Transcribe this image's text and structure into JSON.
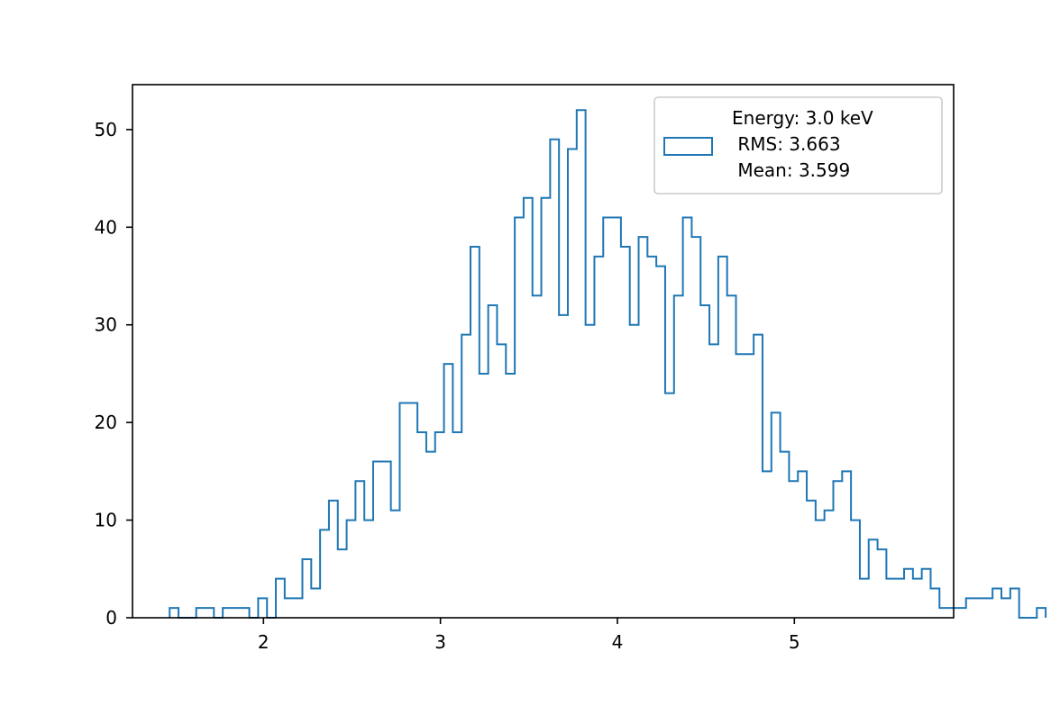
{
  "chart_data": {
    "type": "histogram",
    "histtype": "step",
    "bin_start": 1.47,
    "bin_width": 0.05,
    "counts": [
      1,
      0,
      0,
      1,
      1,
      0,
      1,
      1,
      1,
      0,
      2,
      0,
      4,
      2,
      2,
      6,
      3,
      9,
      12,
      7,
      10,
      14,
      10,
      16,
      16,
      11,
      22,
      22,
      19,
      17,
      19,
      26,
      19,
      29,
      38,
      25,
      32,
      28,
      25,
      41,
      43,
      33,
      43,
      49,
      31,
      48,
      52,
      30,
      37,
      41,
      41,
      38,
      30,
      39,
      37,
      36,
      23,
      33,
      41,
      39,
      32,
      28,
      37,
      33,
      27,
      27,
      29,
      15,
      21,
      17,
      14,
      15,
      12,
      10,
      11,
      14,
      15,
      10,
      4,
      8,
      7,
      4,
      4,
      5,
      4,
      5,
      3,
      1,
      1,
      1,
      2,
      2,
      2,
      3,
      2,
      3,
      0,
      0,
      1
    ],
    "xlim": [
      1.26,
      5.9
    ],
    "ylim": [
      0,
      54.6
    ],
    "xticks": [
      2,
      3,
      4,
      5
    ],
    "yticks": [
      0,
      10,
      20,
      30,
      40,
      50
    ],
    "xlabel": "",
    "ylabel": "",
    "title": "",
    "series_color": "#1f77b4",
    "grid": false,
    "legend": {
      "placement": "top-right",
      "lines": [
        "Energy: 3.0 keV",
        " RMS: 3.663",
        " Mean: 3.599"
      ]
    }
  }
}
